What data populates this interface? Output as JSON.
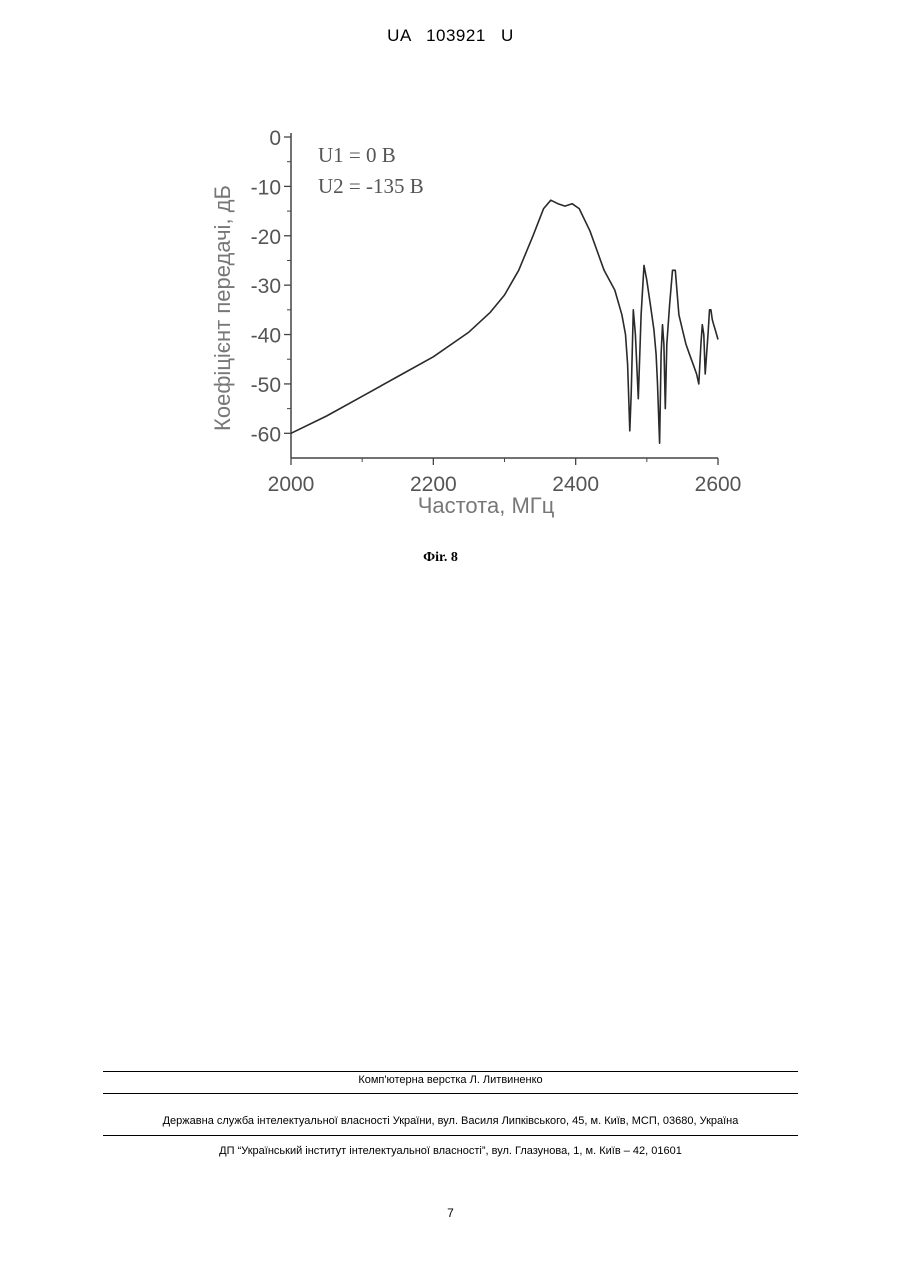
{
  "header": {
    "doc_number": "UA   103921   U"
  },
  "figure": {
    "caption": "Фir. 8"
  },
  "chart_data": {
    "type": "line",
    "xlabel": "Частота, МГц",
    "ylabel": "Коефіцієнт передачі, дБ",
    "xlim": [
      2000,
      2600
    ],
    "ylim": [
      -65,
      0
    ],
    "x_ticks": [
      2000,
      2200,
      2400,
      2600
    ],
    "y_ticks": [
      0,
      -10,
      -20,
      -30,
      -40,
      -50,
      -60
    ],
    "legend_text": [
      "U1 =  0  B",
      "U2 = -135 B"
    ],
    "legend_position": "top-left",
    "grid": false,
    "series": [
      {
        "x": [
          2000,
          2050,
          2100,
          2150,
          2200,
          2250,
          2280,
          2300,
          2320,
          2340,
          2355,
          2365,
          2375,
          2385,
          2395,
          2405,
          2420,
          2440,
          2455,
          2465,
          2470,
          2473,
          2476,
          2478,
          2481,
          2484,
          2488,
          2492,
          2496,
          2500,
          2505,
          2510,
          2513,
          2515,
          2518,
          2520,
          2522,
          2524,
          2526,
          2528,
          2532,
          2536,
          2540,
          2545,
          2550,
          2555,
          2560,
          2565,
          2570,
          2573,
          2576,
          2578,
          2580,
          2582,
          2584,
          2586,
          2588,
          2590,
          2592,
          2594,
          2596,
          2598,
          2600
        ],
        "y": [
          -60,
          -56.5,
          -52.5,
          -48.5,
          -44.5,
          -39.5,
          -35.5,
          -32,
          -27,
          -20,
          -14.5,
          -12.8,
          -13.5,
          -14,
          -13.5,
          -14.5,
          -19,
          -27,
          -31,
          -36,
          -40,
          -46,
          -59.5,
          -52,
          -35,
          -40,
          -53,
          -36,
          -26,
          -29,
          -34,
          -39,
          -44,
          -50,
          -62,
          -44,
          -38,
          -42,
          -55,
          -42,
          -34,
          -27,
          -27,
          -36,
          -39,
          -42,
          -44,
          -46,
          -48,
          -50,
          -42,
          -38,
          -40,
          -48,
          -44,
          -40,
          -35,
          -35,
          -37,
          -38,
          -39,
          -40,
          -41
        ]
      }
    ]
  },
  "footer": {
    "layout_credit": "Комп'ютерна верстка Л. Литвиненко",
    "agency": "Державна служба інтелектуальної власності України, вул. Василя Липківського, 45, м. Київ, МСП, 03680, Україна",
    "institute": "ДП “Український інститут інтелектуальної власності”, вул. Глазунова, 1, м. Київ – 42, 01601"
  },
  "page_number": "7"
}
